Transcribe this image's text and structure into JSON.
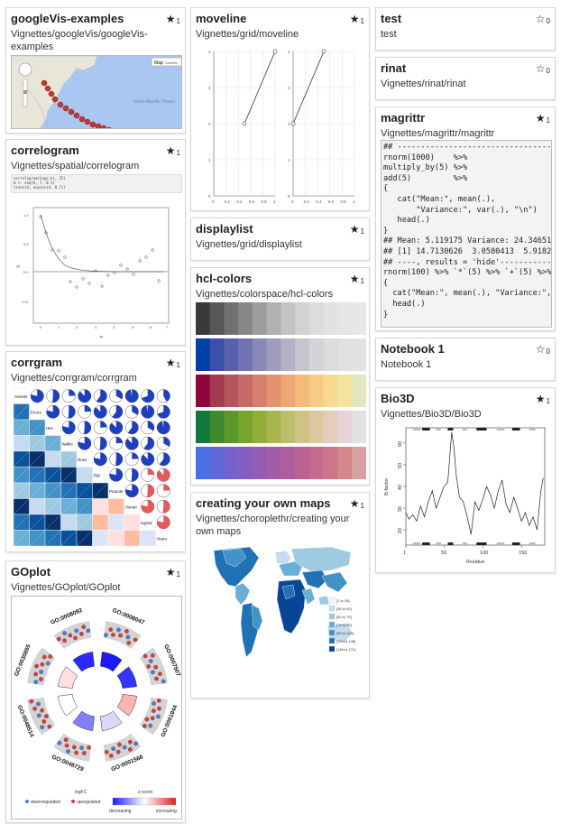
{
  "cards": {
    "googlevis": {
      "title": "googleVis-examples",
      "path": "Vignettes/googleVis/googleVis-examples",
      "stars": "1",
      "starred": true,
      "map_label": "North Atlantic Ocean",
      "map_button": "Map",
      "sat_button": "Satellite"
    },
    "correlogram": {
      "title": "correlogram",
      "path": "Vignettes/spatial/correlogram",
      "stars": "1",
      "starred": true,
      "code": [
        "correlogram(topo.kr, 25)",
        "d <- seq(0, 7, 0.1)",
        "lines(d, expcov(d, 0.7))"
      ],
      "ylabel": "yp",
      "xlabel": "xp"
    },
    "corrgram": {
      "title": "corrgram",
      "path": "Vignettes/corrgram/corrgram",
      "stars": "1",
      "starred": true,
      "vars": [
        "Assists",
        "Errors",
        "Hits",
        "Walks",
        "Runs",
        "RBI",
        "Putouts",
        "Homer",
        "logSal",
        "Years"
      ]
    },
    "goplot": {
      "title": "GOplot",
      "path": "Vignettes/GOplot/GOplot",
      "stars": "1",
      "starred": true,
      "go_terms": [
        "GO:0008047",
        "GO:0007507",
        "GO:0001944",
        "GO:0001568",
        "GO:0048729",
        "GO:0048514",
        "GO:0030855",
        "GO:0008092"
      ],
      "legend_logfc": "logFC",
      "legend_down": "downregulated",
      "legend_up": "upregulated",
      "legend_z": "z-score",
      "legend_dec": "decreasing",
      "legend_inc": "increasing"
    },
    "moveline": {
      "title": "moveline",
      "path": "Vignettes/grid/moveline",
      "stars": "1",
      "starred": true,
      "chart_data": [
        {
          "type": "line",
          "x": [
            0.5,
            1.0
          ],
          "y": [
            2,
            4
          ],
          "xlim": [
            0,
            1
          ],
          "ylim": [
            0,
            4
          ],
          "xticks": [
            "0",
            "0.2",
            "0.4",
            "0.6",
            "0.8",
            "1"
          ],
          "yticks": [
            "0",
            "1",
            "2",
            "3",
            "4"
          ]
        },
        {
          "type": "line",
          "x": [
            0,
            0.5
          ],
          "y": [
            2,
            4
          ],
          "xlim": [
            0,
            1
          ],
          "ylim": [
            0,
            4
          ],
          "xticks": [
            "0",
            "0.2",
            "0.4",
            "0.6",
            "0.8",
            "1"
          ],
          "yticks": [
            "0",
            "1",
            "2",
            "3",
            "4"
          ]
        }
      ]
    },
    "displaylist": {
      "title": "displaylist",
      "path": "Vignettes/grid/displaylist",
      "stars": "1",
      "starred": true
    },
    "hclcolors": {
      "title": "hcl-colors",
      "path": "Vignettes/colorspace/hcl-colors",
      "stars": "1",
      "starred": true,
      "palettes": [
        [
          "#3a3a3a",
          "#575757",
          "#707070",
          "#878787",
          "#9d9d9d",
          "#b1b1b1",
          "#c3c3c3",
          "#d2d2d2",
          "#dcdcdc",
          "#e2e2e2",
          "#e5e5e5",
          "#e7e7e7"
        ],
        [
          "#023fa5",
          "#3c4fa8",
          "#5a61ac",
          "#7274b1",
          "#8a88b8",
          "#a09bbf",
          "#b5b0c7",
          "#c6c4d0",
          "#d3d3d8",
          "#dcdcdd",
          "#e0e0e0",
          "#e2e2e2"
        ],
        [
          "#8e063b",
          "#a33a4d",
          "#b5545d",
          "#c66a67",
          "#d57f6c",
          "#e3946f",
          "#eda873",
          "#f3bb7a",
          "#f6cc84",
          "#f6da91",
          "#f2e4a1",
          "#e2e6bd"
        ],
        [
          "#11773b",
          "#3d8a2f",
          "#5b972a",
          "#78a32d",
          "#93ad3a",
          "#aab64f",
          "#bebd68",
          "#cfc383",
          "#dcc8a0",
          "#e5cdbc",
          "#e9d2d6",
          "#e2e2e2"
        ],
        [
          "#4a6fe3",
          "#6067d8",
          "#7461cc",
          "#855dc0",
          "#955cb4",
          "#a35ca8",
          "#af5e9d",
          "#ba6393",
          "#c46b8c",
          "#cc7789",
          "#d38989",
          "#d9a2a0"
        ]
      ]
    },
    "choropleth": {
      "title": "creating your own maps",
      "path": "Vignettes/choroplethr/creating your own maps",
      "stars": "1",
      "starred": true,
      "legend": [
        {
          "label": "[1 to 28)",
          "color": "#eff3ff"
        },
        {
          "label": "[28 to 50)",
          "color": "#c6dbef"
        },
        {
          "label": "[50 to 75)",
          "color": "#9ecae1"
        },
        {
          "label": "[75 to 99)",
          "color": "#6baed6"
        },
        {
          "label": "[99 to 124)",
          "color": "#4292c6"
        },
        {
          "label": "[124 to 148)",
          "color": "#2171b5"
        },
        {
          "label": "[148 to 171]",
          "color": "#084594"
        }
      ]
    },
    "test": {
      "title": "test",
      "path": "test",
      "stars": "0",
      "starred": false
    },
    "rinat": {
      "title": "rinat",
      "path": "Vignettes/rinat/rinat",
      "stars": "0",
      "starred": false
    },
    "magrittr": {
      "title": "magrittr",
      "path": "Vignettes/magrittr/magrittr",
      "stars": "1",
      "starred": true,
      "code_lines": [
        "## ------------------------------------",
        "rnorm(1000)    %>%",
        "multiply_by(5) %>%",
        "add(5)         %>%",
        "{",
        "   cat(\"Mean:\", mean(.),",
        "       \"Variance:\", var(.), \"\\n\")",
        "   head(.)",
        "}",
        "## Mean: 5.119175 Variance: 24.34651",
        "## [1] 14.7130626  3.0580413  5.91823",
        "## ----, results = 'hide'------------",
        "rnorm(100) %>% `*`(5) %>% `+`(5) %>%",
        "{",
        "  cat(\"Mean:\", mean(.), \"Variance:\",",
        "  head(.)",
        "}"
      ]
    },
    "notebook1": {
      "title": "Notebook 1",
      "path": "Notebook 1",
      "stars": "0",
      "starred": false
    },
    "bio3d": {
      "title": "Bio3D",
      "path": "Vignettes/Bio3D/Bio3D",
      "stars": "1",
      "starred": true,
      "chart_data": {
        "type": "line",
        "title": "",
        "xlabel": "Residue",
        "ylabel": "B-factor",
        "xticks": [
          "1",
          "50",
          "100",
          "150"
        ],
        "yticks": [
          "20",
          "30",
          "40",
          "50",
          "60"
        ],
        "xlim": [
          1,
          180
        ],
        "ylim": [
          13,
          67
        ],
        "x": [
          1,
          5,
          10,
          15,
          20,
          25,
          30,
          35,
          40,
          45,
          50,
          55,
          60,
          63,
          66,
          70,
          75,
          80,
          85,
          90,
          95,
          100,
          105,
          110,
          115,
          120,
          125,
          130,
          135,
          140,
          145,
          150,
          155,
          160,
          165,
          170,
          175,
          178
        ],
        "y": [
          28,
          25,
          27,
          24,
          31,
          26,
          33,
          38,
          30,
          35,
          40,
          42,
          65,
          58,
          45,
          35,
          33,
          26,
          18,
          33,
          29,
          34,
          40,
          36,
          30,
          38,
          43,
          32,
          28,
          35,
          30,
          24,
          28,
          22,
          26,
          20,
          38,
          44
        ]
      }
    }
  }
}
